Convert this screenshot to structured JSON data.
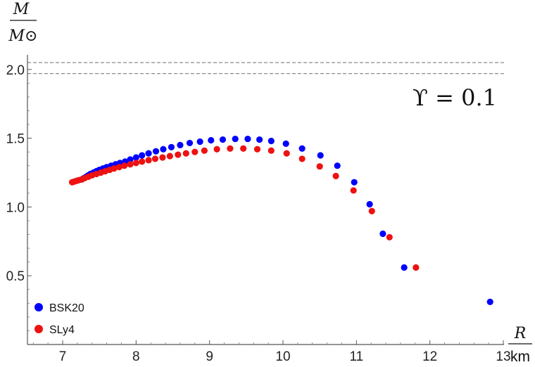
{
  "chart_data": {
    "type": "scatter",
    "annotation": "ϒ = 0.1",
    "xlabel": {
      "var": "R",
      "unit": "km"
    },
    "ylabel": {
      "var": "M",
      "unit": "M⊙"
    },
    "xlim": [
      6.6,
      13.0
    ],
    "ylim": [
      0.0,
      2.1
    ],
    "xticks": [
      7,
      8,
      9,
      10,
      11,
      12,
      13
    ],
    "yticks": [
      0.5,
      1.0,
      1.5,
      2.0
    ],
    "ytick_labels": [
      "0.5",
      "1.0",
      "1.5",
      "2.0"
    ],
    "reference_lines": [
      1.97,
      2.05
    ],
    "grid": false,
    "legend_position": "bottom-left",
    "series": [
      {
        "name": "BSK20",
        "color": "#0000ff",
        "points": [
          [
            7.26,
            1.2
          ],
          [
            7.29,
            1.21
          ],
          [
            7.32,
            1.22
          ],
          [
            7.35,
            1.23
          ],
          [
            7.38,
            1.24
          ],
          [
            7.42,
            1.25
          ],
          [
            7.46,
            1.26
          ],
          [
            7.5,
            1.27
          ],
          [
            7.55,
            1.28
          ],
          [
            7.6,
            1.29
          ],
          [
            7.66,
            1.3
          ],
          [
            7.72,
            1.31
          ],
          [
            7.78,
            1.32
          ],
          [
            7.85,
            1.33
          ],
          [
            7.92,
            1.345
          ],
          [
            8.0,
            1.36
          ],
          [
            8.08,
            1.375
          ],
          [
            8.17,
            1.39
          ],
          [
            8.27,
            1.405
          ],
          [
            8.37,
            1.42
          ],
          [
            8.48,
            1.435
          ],
          [
            8.6,
            1.45
          ],
          [
            8.73,
            1.465
          ],
          [
            8.87,
            1.475
          ],
          [
            9.02,
            1.485
          ],
          [
            9.18,
            1.49
          ],
          [
            9.35,
            1.495
          ],
          [
            9.52,
            1.495
          ],
          [
            9.68,
            1.49
          ],
          [
            9.84,
            1.48
          ],
          [
            10.04,
            1.46
          ],
          [
            10.26,
            1.425
          ],
          [
            10.51,
            1.375
          ],
          [
            10.74,
            1.3
          ],
          [
            10.97,
            1.18
          ],
          [
            11.18,
            1.02
          ],
          [
            11.36,
            0.805
          ],
          [
            11.65,
            0.56
          ],
          [
            12.82,
            0.31
          ]
        ]
      },
      {
        "name": "SLy4",
        "color": "#ee1111",
        "points": [
          [
            7.13,
            1.18
          ],
          [
            7.16,
            1.185
          ],
          [
            7.19,
            1.19
          ],
          [
            7.22,
            1.195
          ],
          [
            7.26,
            1.2
          ],
          [
            7.3,
            1.21
          ],
          [
            7.35,
            1.22
          ],
          [
            7.4,
            1.23
          ],
          [
            7.46,
            1.24
          ],
          [
            7.52,
            1.25
          ],
          [
            7.58,
            1.26
          ],
          [
            7.64,
            1.27
          ],
          [
            7.7,
            1.28
          ],
          [
            7.77,
            1.29
          ],
          [
            7.84,
            1.3
          ],
          [
            7.92,
            1.31
          ],
          [
            8.0,
            1.32
          ],
          [
            8.08,
            1.33
          ],
          [
            8.17,
            1.34
          ],
          [
            8.26,
            1.35
          ],
          [
            8.36,
            1.36
          ],
          [
            8.46,
            1.37
          ],
          [
            8.57,
            1.38
          ],
          [
            8.68,
            1.39
          ],
          [
            8.8,
            1.4
          ],
          [
            8.93,
            1.41
          ],
          [
            9.1,
            1.42
          ],
          [
            9.28,
            1.425
          ],
          [
            9.46,
            1.425
          ],
          [
            9.65,
            1.42
          ],
          [
            9.84,
            1.41
          ],
          [
            10.05,
            1.39
          ],
          [
            10.26,
            1.35
          ],
          [
            10.5,
            1.295
          ],
          [
            10.72,
            1.225
          ],
          [
            10.96,
            1.12
          ],
          [
            11.21,
            0.97
          ],
          [
            11.45,
            0.78
          ],
          [
            11.81,
            0.56
          ]
        ]
      }
    ]
  }
}
